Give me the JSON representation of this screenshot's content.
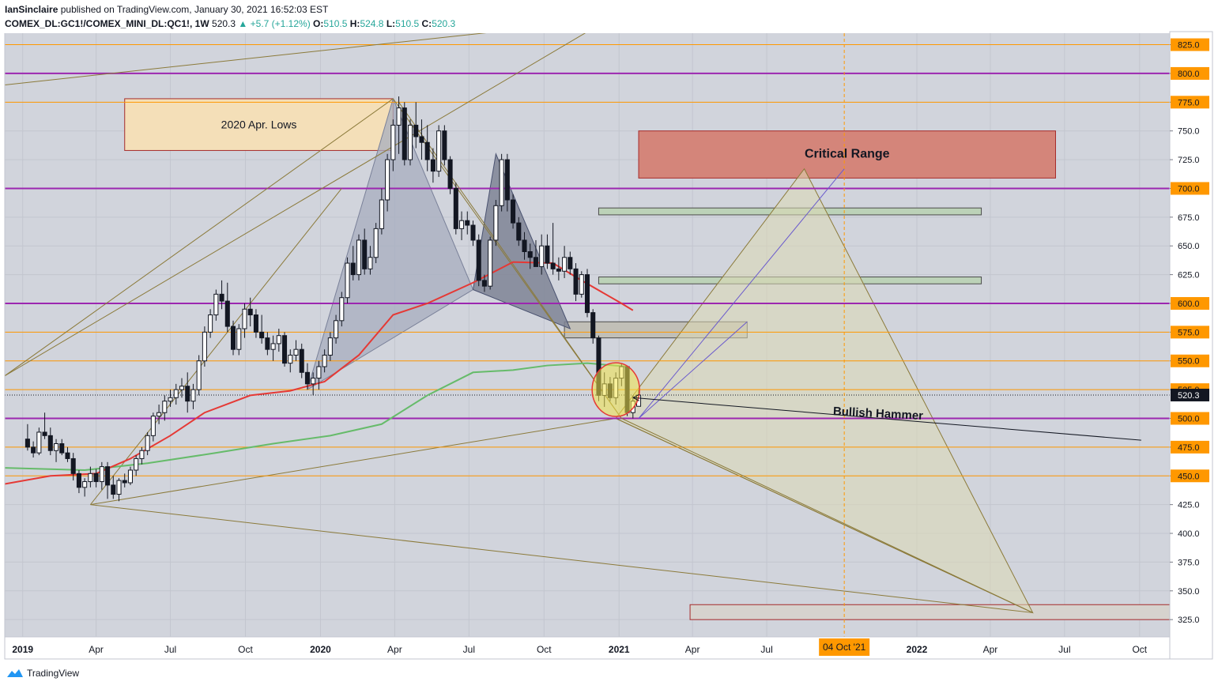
{
  "header": {
    "author": "IanSinclaire",
    "published": "published on TradingView.com, January 30, 2021 16:52:03 EST",
    "symbol": "COMEX_DL:GC1!/COMEX_MINI_DL:QC1!, 1W",
    "last": "520.3",
    "change_arrow": "▲",
    "change": "+5.7 (+1.12%)",
    "o_label": "O:",
    "o": "510.5",
    "h_label": "H:",
    "h": "524.8",
    "l_label": "L:",
    "l": "510.5",
    "c_label": "C:",
    "c": "520.3"
  },
  "footer": {
    "logo_icon": "tradingview-logo-icon",
    "brand": "TradingView"
  },
  "colors": {
    "background": "#d1d4dc",
    "purple_level": "#9c27b0",
    "orange_level": "#ff9800",
    "up_candle": "#ffffff",
    "down_candle": "#131722",
    "ma_fast": "#e53935",
    "ma_slow": "#66bb6a",
    "price_tag": "#ff9800",
    "last_price_tag": "#131722"
  },
  "chart_data": {
    "type": "candlestick",
    "timeframe": "1W",
    "ylim": [
      310,
      835
    ],
    "xlim": [
      "2018-12-10",
      "2022-11-07"
    ],
    "grid": true,
    "y_ticks": [
      325,
      350,
      375,
      400,
      425,
      450,
      475,
      500,
      525,
      550,
      575,
      600,
      625,
      650,
      675,
      700,
      725,
      750,
      775,
      800,
      825
    ],
    "y_tick_labels": [
      "325.0",
      "350.0",
      "375.0",
      "400.0",
      "425.0",
      "450.0",
      "475.0",
      "500.0",
      "525.0",
      "550.0",
      "575.0",
      "600.0",
      "625.0",
      "650.0",
      "675.0",
      "700.0",
      "725.0",
      "750.0",
      "775.0",
      "800.0",
      "825.0"
    ],
    "x_ticks": [
      {
        "date": "2019-01-01",
        "label": "2019",
        "bold": true
      },
      {
        "date": "2019-04-01",
        "label": "Apr",
        "bold": false
      },
      {
        "date": "2019-07-01",
        "label": "Jul",
        "bold": false
      },
      {
        "date": "2019-10-01",
        "label": "Oct",
        "bold": false
      },
      {
        "date": "2020-01-01",
        "label": "2020",
        "bold": true
      },
      {
        "date": "2020-04-01",
        "label": "Apr",
        "bold": false
      },
      {
        "date": "2020-07-01",
        "label": "Jul",
        "bold": false
      },
      {
        "date": "2020-10-01",
        "label": "Oct",
        "bold": false
      },
      {
        "date": "2021-01-01",
        "label": "2021",
        "bold": true
      },
      {
        "date": "2021-04-01",
        "label": "Apr",
        "bold": false
      },
      {
        "date": "2021-07-01",
        "label": "Jul",
        "bold": false
      },
      {
        "date": "2022-01-01",
        "label": "2022",
        "bold": true
      },
      {
        "date": "2022-04-01",
        "label": "Apr",
        "bold": false
      },
      {
        "date": "2022-07-01",
        "label": "Jul",
        "bold": false
      },
      {
        "date": "2022-10-01",
        "label": "Oct",
        "bold": false
      }
    ],
    "crosshair": {
      "date": "2021-10-04",
      "label": "04 Oct '21"
    },
    "last_price": {
      "value": 520.3,
      "label": "520.3"
    },
    "purple_levels": [
      800,
      700,
      600,
      500
    ],
    "orange_levels": [
      825,
      775,
      575,
      550,
      525,
      475,
      450
    ],
    "price_tags": [
      {
        "value": 825,
        "label": "825.0"
      },
      {
        "value": 800,
        "label": "800.0"
      },
      {
        "value": 775,
        "label": "775.0"
      },
      {
        "value": 700,
        "label": "700.0"
      },
      {
        "value": 600,
        "label": "600.0"
      },
      {
        "value": 575,
        "label": "575.0"
      },
      {
        "value": 550,
        "label": "550.0"
      },
      {
        "value": 525,
        "label": "525.0"
      },
      {
        "value": 500,
        "label": "500.0"
      },
      {
        "value": 475,
        "label": "475.0"
      },
      {
        "value": 450,
        "label": "450.0"
      }
    ],
    "candles": [
      [
        482,
        495,
        472,
        475
      ],
      [
        475,
        480,
        466,
        470
      ],
      [
        470,
        492,
        468,
        488
      ],
      [
        488,
        505,
        482,
        485
      ],
      [
        485,
        492,
        468,
        472
      ],
      [
        472,
        482,
        462,
        478
      ],
      [
        478,
        482,
        468,
        470
      ],
      [
        470,
        475,
        462,
        465
      ],
      [
        465,
        470,
        446,
        452
      ],
      [
        452,
        455,
        435,
        440
      ],
      [
        440,
        448,
        432,
        445
      ],
      [
        445,
        458,
        440,
        452
      ],
      [
        452,
        456,
        440,
        445
      ],
      [
        445,
        462,
        438,
        458
      ],
      [
        458,
        462,
        430,
        442
      ],
      [
        442,
        450,
        430,
        434
      ],
      [
        434,
        448,
        428,
        446
      ],
      [
        446,
        452,
        440,
        444
      ],
      [
        444,
        458,
        442,
        455
      ],
      [
        455,
        468,
        450,
        465
      ],
      [
        465,
        475,
        460,
        472
      ],
      [
        472,
        488,
        468,
        485
      ],
      [
        485,
        505,
        480,
        502
      ],
      [
        502,
        512,
        495,
        505
      ],
      [
        505,
        520,
        498,
        515
      ],
      [
        515,
        525,
        510,
        518
      ],
      [
        518,
        530,
        512,
        525
      ],
      [
        525,
        535,
        518,
        528
      ],
      [
        528,
        540,
        505,
        515
      ],
      [
        515,
        530,
        508,
        525
      ],
      [
        525,
        555,
        520,
        550
      ],
      [
        550,
        580,
        545,
        575
      ],
      [
        575,
        595,
        570,
        590
      ],
      [
        590,
        612,
        585,
        608
      ],
      [
        608,
        620,
        595,
        602
      ],
      [
        602,
        618,
        575,
        580
      ],
      [
        580,
        585,
        555,
        560
      ],
      [
        560,
        582,
        555,
        578
      ],
      [
        578,
        600,
        570,
        595
      ],
      [
        595,
        605,
        580,
        590
      ],
      [
        590,
        595,
        570,
        575
      ],
      [
        575,
        590,
        565,
        570
      ],
      [
        570,
        575,
        555,
        560
      ],
      [
        560,
        572,
        550,
        565
      ],
      [
        565,
        578,
        558,
        572
      ],
      [
        572,
        575,
        545,
        548
      ],
      [
        548,
        560,
        540,
        555
      ],
      [
        555,
        568,
        550,
        560
      ],
      [
        560,
        565,
        535,
        540
      ],
      [
        540,
        548,
        525,
        530
      ],
      [
        530,
        540,
        520,
        535
      ],
      [
        535,
        550,
        525,
        545
      ],
      [
        545,
        560,
        540,
        555
      ],
      [
        555,
        575,
        550,
        570
      ],
      [
        570,
        590,
        565,
        585
      ],
      [
        585,
        610,
        580,
        605
      ],
      [
        605,
        640,
        600,
        635
      ],
      [
        635,
        650,
        620,
        625
      ],
      [
        625,
        660,
        620,
        655
      ],
      [
        655,
        665,
        625,
        630
      ],
      [
        630,
        650,
        625,
        640
      ],
      [
        640,
        670,
        635,
        665
      ],
      [
        665,
        700,
        660,
        690
      ],
      [
        690,
        730,
        680,
        725
      ],
      [
        725,
        760,
        715,
        755
      ],
      [
        755,
        780,
        730,
        770
      ],
      [
        770,
        775,
        720,
        725
      ],
      [
        725,
        760,
        720,
        755
      ],
      [
        755,
        775,
        735,
        745
      ],
      [
        745,
        760,
        725,
        740
      ],
      [
        740,
        755,
        715,
        725
      ],
      [
        725,
        735,
        705,
        715
      ],
      [
        715,
        755,
        710,
        750
      ],
      [
        750,
        755,
        720,
        725
      ],
      [
        725,
        728,
        695,
        700
      ],
      [
        700,
        705,
        660,
        665
      ],
      [
        665,
        680,
        655,
        672
      ],
      [
        672,
        680,
        660,
        668
      ],
      [
        668,
        672,
        650,
        655
      ],
      [
        655,
        660,
        615,
        620
      ],
      [
        620,
        625,
        610,
        615
      ],
      [
        615,
        658,
        612,
        655
      ],
      [
        655,
        690,
        650,
        685
      ],
      [
        685,
        730,
        680,
        725
      ],
      [
        725,
        730,
        680,
        690
      ],
      [
        690,
        695,
        665,
        670
      ],
      [
        670,
        675,
        650,
        655
      ],
      [
        655,
        662,
        638,
        645
      ],
      [
        645,
        652,
        630,
        640
      ],
      [
        640,
        655,
        635,
        632
      ],
      [
        632,
        660,
        625,
        650
      ],
      [
        650,
        660,
        630,
        635
      ],
      [
        635,
        670,
        625,
        630
      ],
      [
        630,
        640,
        620,
        628
      ],
      [
        628,
        650,
        622,
        640
      ],
      [
        640,
        645,
        625,
        630
      ],
      [
        630,
        635,
        602,
        608
      ],
      [
        608,
        628,
        605,
        625
      ],
      [
        625,
        630,
        588,
        592
      ],
      [
        592,
        595,
        565,
        570
      ],
      [
        570,
        572,
        515,
        520
      ],
      [
        520,
        540,
        510,
        530
      ],
      [
        530,
        536,
        515,
        518
      ],
      [
        518,
        540,
        512,
        535
      ],
      [
        535,
        548,
        528,
        545
      ],
      [
        545,
        546,
        502,
        505
      ],
      [
        505,
        520,
        500,
        515
      ],
      [
        510.5,
        524.8,
        510.5,
        520.3
      ]
    ],
    "ma_fast_points": [
      [
        "2018-12-10",
        443
      ],
      [
        "2019-02-04",
        450
      ],
      [
        "2019-04-01",
        452
      ],
      [
        "2019-05-13",
        465
      ],
      [
        "2019-07-01",
        485
      ],
      [
        "2019-08-12",
        505
      ],
      [
        "2019-10-07",
        520
      ],
      [
        "2019-11-25",
        524
      ],
      [
        "2020-01-06",
        532
      ],
      [
        "2020-02-17",
        555
      ],
      [
        "2020-03-30",
        590
      ],
      [
        "2020-05-11",
        600
      ],
      [
        "2020-07-06",
        618
      ],
      [
        "2020-08-24",
        636
      ],
      [
        "2020-10-12",
        635
      ],
      [
        "2020-11-16",
        620
      ],
      [
        "2021-01-04",
        600
      ],
      [
        "2021-01-18",
        594
      ]
    ],
    "ma_slow_points": [
      [
        "2018-12-10",
        457
      ],
      [
        "2019-03-18",
        455
      ],
      [
        "2019-06-03",
        461
      ],
      [
        "2019-08-26",
        470
      ],
      [
        "2019-11-04",
        478
      ],
      [
        "2020-01-13",
        485
      ],
      [
        "2020-03-16",
        495
      ],
      [
        "2020-05-11",
        520
      ],
      [
        "2020-07-06",
        540
      ],
      [
        "2020-08-24",
        542
      ],
      [
        "2020-10-05",
        546
      ],
      [
        "2020-11-23",
        548
      ],
      [
        "2021-01-11",
        545
      ]
    ],
    "annotations": {
      "rect_2020_apr_lows": {
        "label": "2020 Apr. Lows",
        "top": 778,
        "bottom": 733,
        "start": "2019-05-06",
        "end": "2020-03-30"
      },
      "rect_critical_range": {
        "label": "Critical Range",
        "top": 750,
        "bottom": 709,
        "start": "2021-01-25",
        "end": "2022-06-20"
      },
      "rect_green_1": {
        "top": 683,
        "bottom": 677,
        "start": "2020-12-07",
        "end": "2022-03-21"
      },
      "rect_green_2": {
        "top": 623,
        "bottom": 617,
        "start": "2020-12-07",
        "end": "2022-03-21"
      },
      "rect_grey": {
        "top": 584,
        "bottom": 570,
        "start": "2020-10-26",
        "end": "2021-06-07"
      },
      "rect_bottom": {
        "top": 338,
        "bottom": 325,
        "start": "2021-03-29",
        "end": "2022-11-07"
      },
      "bullish_hammer_label": "Bullish Hammer",
      "hammer_circle": {
        "date": "2020-12-28",
        "value": 525
      }
    }
  }
}
